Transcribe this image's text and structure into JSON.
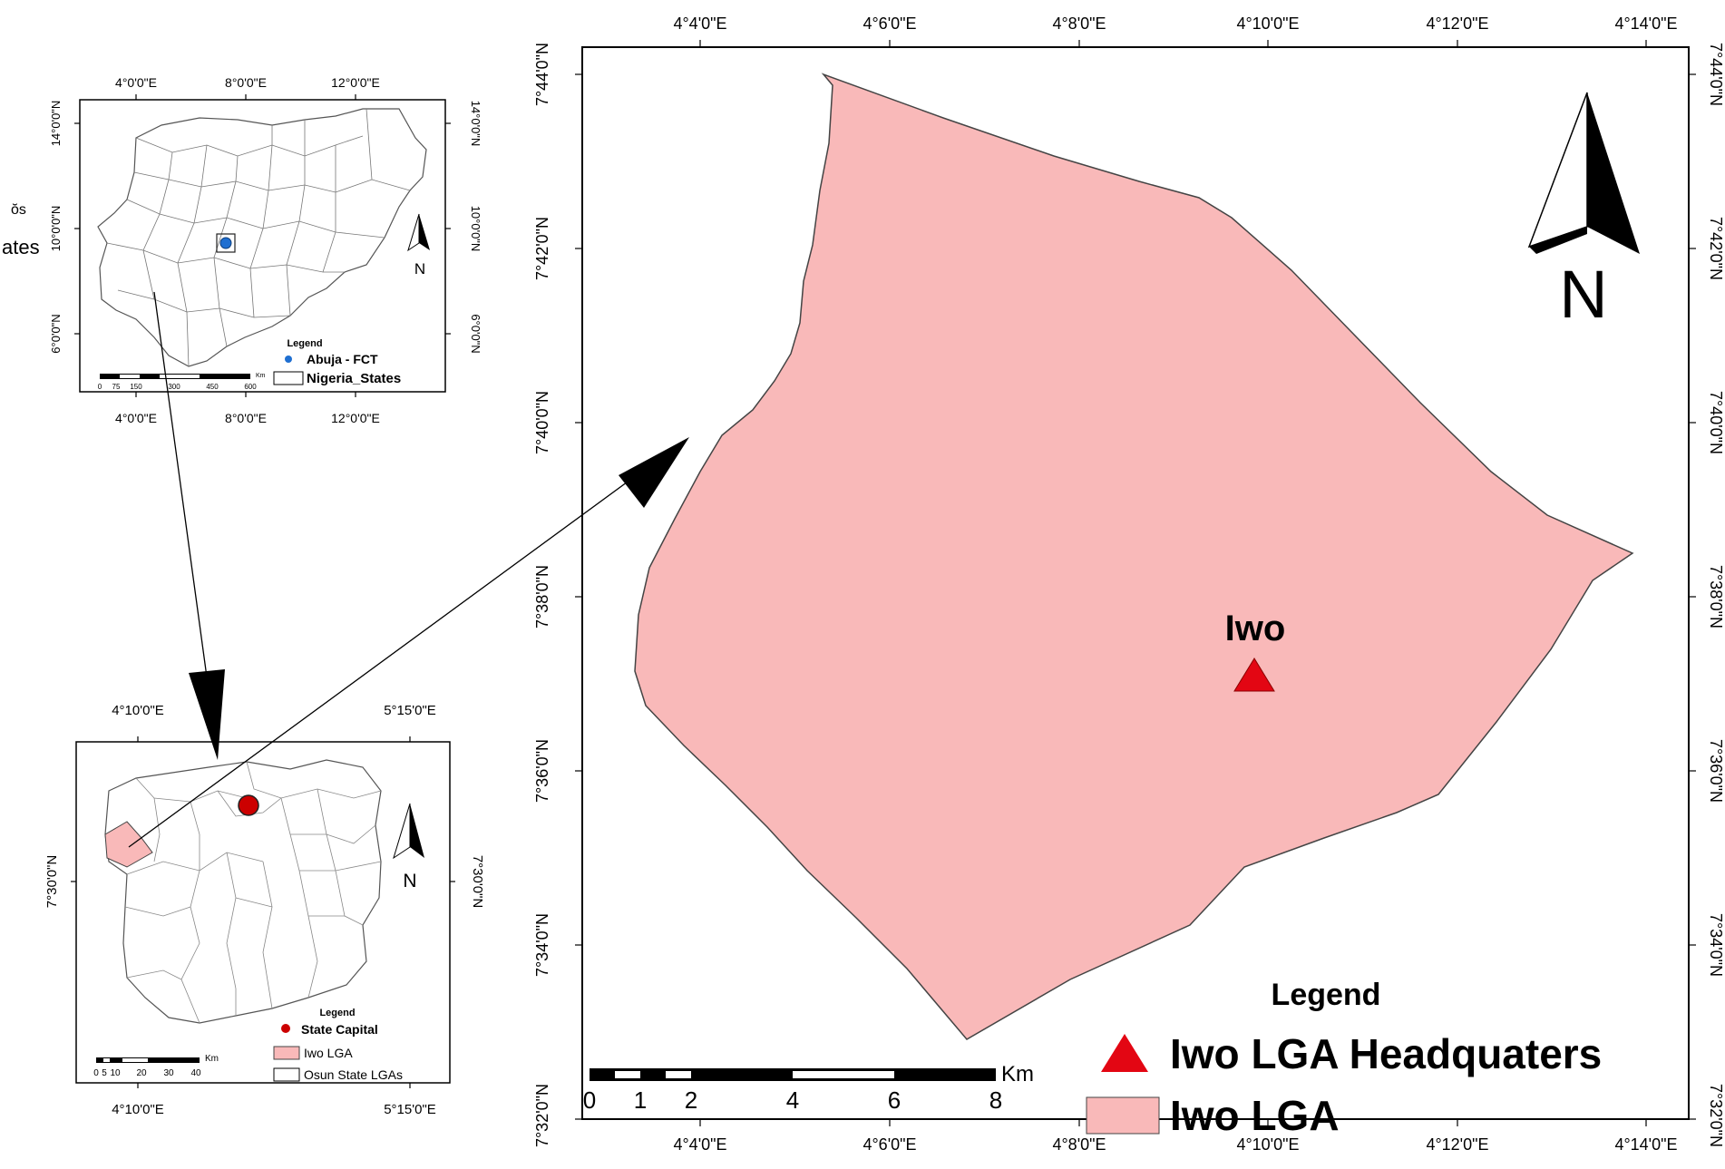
{
  "overview": {
    "nigeria": {
      "x_ticks_top": [
        "4°0'0\"E",
        "8°0'0\"E",
        "12°0'0\"E"
      ],
      "x_ticks_bottom": [
        "4°0'0\"E",
        "8°0'0\"E",
        "12°0'0\"E"
      ],
      "y_ticks": [
        "14°0'0\"N",
        "10°0'0\"N",
        "6°0'0\"N"
      ],
      "north_label": "N",
      "legend": {
        "title": "Legend",
        "items": [
          {
            "label": "Abuja - FCT",
            "color": "#1f6fd1",
            "symbol": "dot"
          },
          {
            "label": "Nigeria_States",
            "color": "#ffffff",
            "symbol": "box"
          }
        ]
      },
      "scale": {
        "unit": "Km",
        "labels": [
          "0",
          "75",
          "150",
          "300",
          "450",
          "600"
        ]
      },
      "fragment_text": [
        "ŏs",
        "ates"
      ]
    },
    "osun": {
      "x_ticks_top": [
        "4°10'0\"E",
        "5°15'0\"E"
      ],
      "x_ticks_bottom": [
        "4°10'0\"E",
        "5°15'0\"E"
      ],
      "y_ticks": [
        "7°30'0\"N"
      ],
      "north_label": "N",
      "legend": {
        "title": "Legend",
        "items": [
          {
            "label": "State Capital",
            "color": "#cc0000",
            "symbol": "dot"
          },
          {
            "label": "Iwo LGA",
            "color": "#f9b9b9",
            "symbol": "box"
          },
          {
            "label": "Osun State LGAs",
            "color": "#ffffff",
            "symbol": "box"
          }
        ]
      },
      "scale": {
        "unit": "Km",
        "labels": [
          "0",
          "5",
          "10",
          "20",
          "30",
          "40"
        ]
      }
    }
  },
  "main_map": {
    "x_ticks": [
      "4°4'0\"E",
      "4°6'0\"E",
      "4°8'0\"E",
      "4°10'0\"E",
      "4°12'0\"E",
      "4°14'0\"E"
    ],
    "y_ticks": [
      "7°44'0\"N",
      "7°42'0\"N",
      "7°40'0\"N",
      "7°38'0\"N",
      "7°36'0\"N",
      "7°34'0\"N",
      "7°32'0\"N"
    ],
    "feature_label": "Iwo",
    "lga_fill": "#f9b9b9",
    "hq_color": "#e30613",
    "north_label": "N",
    "scale": {
      "unit": "Km",
      "labels": [
        "0",
        "1",
        "2",
        "4",
        "6",
        "8"
      ]
    },
    "legend": {
      "title": "Legend",
      "items": [
        {
          "label": "Iwo LGA Headquaters",
          "symbol": "triangle",
          "color": "#e30613"
        },
        {
          "label": "Iwo LGA",
          "symbol": "box",
          "color": "#f9b9b9"
        }
      ]
    }
  }
}
